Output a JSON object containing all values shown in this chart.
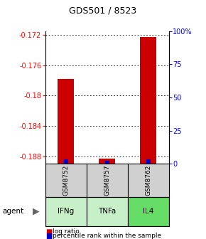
{
  "title": "GDS501 / 8523",
  "samples": [
    "GSM8752",
    "GSM8757",
    "GSM8762"
  ],
  "agents": [
    "IFNg",
    "TNFa",
    "IL4"
  ],
  "agent_colors": [
    "#c8f0c8",
    "#c8f0c8",
    "#66dd66"
  ],
  "log_ratio_values": [
    -0.1778,
    -0.1883,
    -0.1723
  ],
  "percentile_values": [
    3.5,
    2.0,
    3.5
  ],
  "ylim_left": [
    -0.189,
    -0.1715
  ],
  "yticks_left": [
    -0.188,
    -0.184,
    -0.18,
    -0.176,
    -0.172
  ],
  "ytick_labels_left": [
    "-0.188",
    "-0.184",
    "-0.18",
    "-0.176",
    "-0.172"
  ],
  "ylim_right": [
    0,
    100
  ],
  "yticks_right": [
    0,
    25,
    50,
    75,
    100
  ],
  "ytick_labels_right": [
    "0",
    "25",
    "50",
    "75",
    "100%"
  ],
  "bar_bottom": -0.189,
  "bar_color": "#cc0000",
  "percentile_color": "#0000cc",
  "sample_box_color": "#d0d0d0",
  "legend_log_ratio": "log ratio",
  "legend_percentile": "percentile rank within the sample",
  "agent_label": "agent",
  "bar_width": 0.4,
  "pct_bar_width": 0.1
}
